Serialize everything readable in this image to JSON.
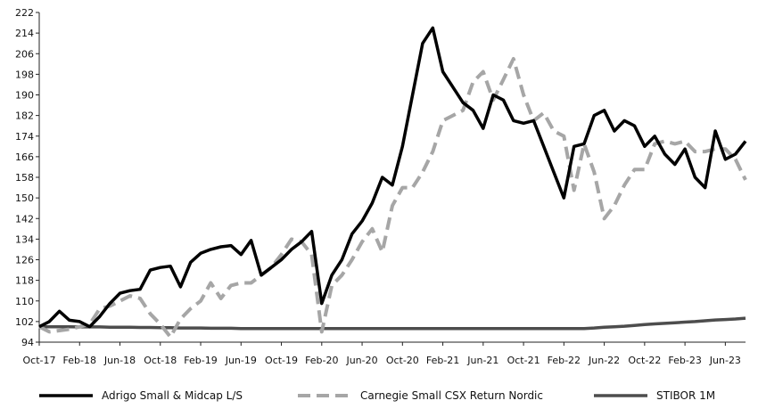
{
  "chart_data": {
    "type": "line",
    "title": "",
    "xlabel": "",
    "ylabel": "",
    "ylim": [
      94,
      222
    ],
    "yticks": [
      94,
      102,
      110,
      118,
      126,
      134,
      142,
      150,
      158,
      166,
      174,
      182,
      190,
      198,
      206,
      214,
      222
    ],
    "xticks": [
      "Oct-17",
      "Feb-18",
      "Jun-18",
      "Oct-18",
      "Feb-19",
      "Jun-19",
      "Oct-19",
      "Feb-20",
      "Jun-20",
      "Oct-20",
      "Feb-21",
      "Jun-21",
      "Oct-21",
      "Feb-22",
      "Jun-22",
      "Oct-22",
      "Feb-23",
      "Jun-23"
    ],
    "x_start": "2017-10",
    "grid": false,
    "legend_position": "bottom",
    "series": [
      {
        "name": "Adrigo Small & Midcap L/S",
        "color": "#000000",
        "style": "solid",
        "values": [
          100,
          102,
          106,
          102.5,
          102,
          100,
          104,
          109,
          113,
          114,
          114.5,
          122,
          123,
          123.5,
          115.5,
          125,
          128.5,
          130,
          131,
          131.5,
          128,
          133.5,
          120,
          123,
          126,
          130,
          133,
          137,
          109,
          120,
          126,
          136,
          141,
          148,
          158,
          155,
          170,
          190,
          210,
          216,
          199,
          193,
          187,
          184,
          177,
          190,
          188,
          180,
          179,
          180,
          170,
          160,
          150,
          170,
          171,
          182,
          184,
          176,
          180,
          178,
          170,
          174,
          167,
          163,
          169,
          158,
          154,
          176,
          165,
          167,
          172
        ]
      },
      {
        "name": "Carnegie Small CSX Return Nordic",
        "color": "#a6a6a6",
        "style": "dashed",
        "values": [
          100,
          98,
          98.5,
          99,
          100,
          101,
          107,
          108,
          110,
          112,
          111,
          105,
          101,
          96,
          103,
          107,
          110,
          117,
          111,
          116,
          117,
          117,
          120,
          123,
          128,
          134,
          133,
          128,
          98,
          116,
          120,
          126,
          133,
          138,
          129,
          147,
          154,
          154,
          160,
          168,
          180,
          182,
          184,
          195,
          199,
          188,
          196,
          204,
          190,
          180,
          183,
          176,
          174,
          153,
          171,
          160,
          142,
          147,
          155,
          161,
          161,
          171,
          172,
          171,
          172,
          168,
          168,
          169,
          169,
          165,
          157
        ]
      },
      {
        "name": "STIBOR 1M",
        "color": "#4d4d4d",
        "style": "solid",
        "values": [
          100,
          100,
          100,
          100,
          99.9,
          99.9,
          99.9,
          99.8,
          99.8,
          99.8,
          99.7,
          99.7,
          99.6,
          99.6,
          99.5,
          99.5,
          99.5,
          99.4,
          99.4,
          99.4,
          99.3,
          99.3,
          99.3,
          99.3,
          99.3,
          99.3,
          99.3,
          99.3,
          99.3,
          99.3,
          99.3,
          99.3,
          99.3,
          99.3,
          99.3,
          99.3,
          99.3,
          99.3,
          99.3,
          99.3,
          99.3,
          99.3,
          99.3,
          99.3,
          99.3,
          99.3,
          99.3,
          99.3,
          99.3,
          99.3,
          99.3,
          99.3,
          99.3,
          99.3,
          99.3,
          99.5,
          99.8,
          100,
          100.2,
          100.5,
          100.8,
          101.1,
          101.3,
          101.5,
          101.8,
          102,
          102.3,
          102.6,
          102.8,
          103,
          103.3
        ]
      }
    ]
  }
}
